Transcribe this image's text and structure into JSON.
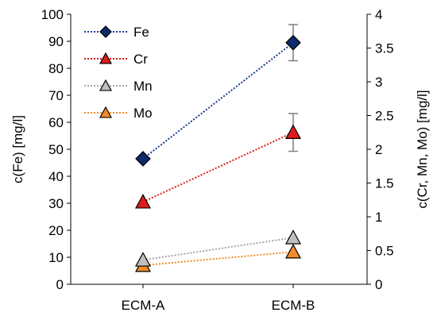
{
  "chart_data": {
    "type": "line",
    "title": "",
    "categories": [
      "ECM-A",
      "ECM-B"
    ],
    "ylabel_left": "c(Fe) [mg/l]",
    "ylabel_right": "c(Cr, Mn, Mo) [mg/l]",
    "ylim_left": [
      0,
      100
    ],
    "yticks_left": [
      "0",
      "10",
      "20",
      "30",
      "40",
      "50",
      "60",
      "70",
      "80",
      "90",
      "100"
    ],
    "ylim_right": [
      0,
      4
    ],
    "yticks_right": [
      "0",
      "0.5",
      "1",
      "1.5",
      "2",
      "2.5",
      "3",
      "3.5",
      "4"
    ],
    "grid": false,
    "legend_position": "top-left",
    "series": [
      {
        "name": "Fe",
        "axis": "left",
        "values": [
          46.5,
          89.5
        ],
        "error": [
          0,
          6.7
        ],
        "marker": "diamond",
        "color": "#1f3a93",
        "fill": "#0d2a6b"
      },
      {
        "name": "Cr",
        "axis": "right",
        "values": [
          1.22,
          2.25
        ],
        "error": [
          0,
          0.28
        ],
        "marker": "triangle",
        "color": "#e01b1b",
        "fill": "#e01b1b"
      },
      {
        "name": "Mn",
        "axis": "right",
        "values": [
          0.36,
          0.69
        ],
        "error": [
          0,
          0
        ],
        "marker": "triangle",
        "color": "#a6a6a6",
        "fill": "#bfbfbf"
      },
      {
        "name": "Mo",
        "axis": "right",
        "values": [
          0.28,
          0.48
        ],
        "error": [
          0,
          0
        ],
        "marker": "triangle",
        "color": "#f28c28",
        "fill": "#f28c28"
      }
    ]
  }
}
